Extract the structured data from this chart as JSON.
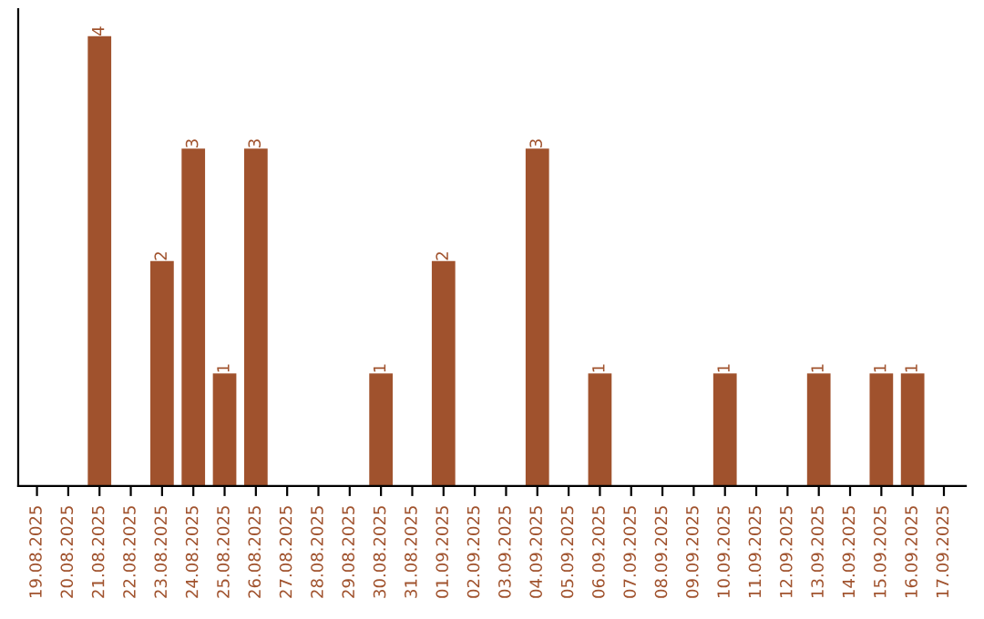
{
  "chart_data": {
    "type": "bar",
    "categories": [
      "19.08.2025",
      "20.08.2025",
      "21.08.2025",
      "22.08.2025",
      "23.08.2025",
      "24.08.2025",
      "25.08.2025",
      "26.08.2025",
      "27.08.2025",
      "28.08.2025",
      "29.08.2025",
      "30.08.2025",
      "31.08.2025",
      "01.09.2025",
      "02.09.2025",
      "03.09.2025",
      "04.09.2025",
      "05.09.2025",
      "06.09.2025",
      "07.09.2025",
      "08.09.2025",
      "09.09.2025",
      "10.09.2025",
      "11.09.2025",
      "12.09.2025",
      "13.09.2025",
      "14.09.2025",
      "15.09.2025",
      "16.09.2025",
      "17.09.2025"
    ],
    "values": [
      0,
      0,
      4,
      0,
      2,
      3,
      1,
      3,
      0,
      0,
      0,
      1,
      0,
      2,
      0,
      0,
      3,
      0,
      1,
      0,
      0,
      0,
      1,
      0,
      0,
      1,
      0,
      1,
      1,
      0
    ],
    "value_labels": [
      null,
      null,
      "4",
      null,
      "2",
      "3",
      "1",
      "3",
      null,
      null,
      null,
      "1",
      null,
      "2",
      null,
      null,
      "3",
      null,
      "1",
      null,
      null,
      null,
      "1",
      null,
      null,
      "1",
      null,
      "1",
      "1",
      null
    ],
    "color": "#a0522d",
    "tick_labels": "x",
    "grid": false
  }
}
